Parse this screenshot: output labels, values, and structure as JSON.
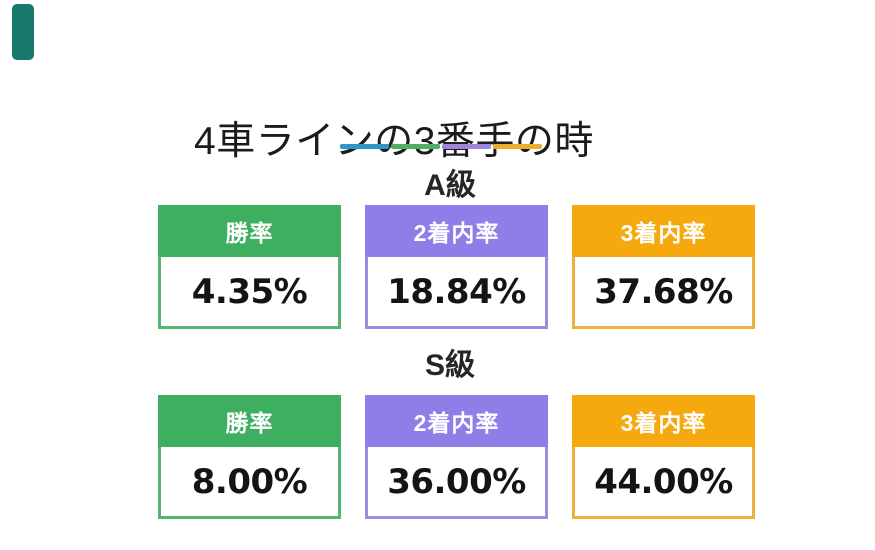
{
  "title": {
    "text": "4車ラインの3番手の時"
  },
  "accent_bar": {
    "color": "#17786E"
  },
  "divider": {
    "segments": [
      {
        "name": "blue",
        "color": "#3094C5"
      },
      {
        "name": "green",
        "color": "#4FAF66"
      },
      {
        "name": "purple",
        "color": "#9D87DC"
      },
      {
        "name": "amber",
        "color": "#ECAF2D"
      }
    ]
  },
  "sections": [
    {
      "id": "a-class",
      "heading": "A級",
      "cards": [
        {
          "label": "勝率",
          "value": "4.35%",
          "header_color": "#3EAE60",
          "border_color": "#55B671"
        },
        {
          "label": "2着内率",
          "value": "18.84%",
          "header_color": "#8D7EE8",
          "border_color": "#9C8CE0"
        },
        {
          "label": "3着内率",
          "value": "37.68%",
          "header_color": "#F6A90E",
          "border_color": "#EDB23C"
        }
      ]
    },
    {
      "id": "s-class",
      "heading": "S級",
      "cards": [
        {
          "label": "勝率",
          "value": "8.00%",
          "header_color": "#3EAE60",
          "border_color": "#55B671"
        },
        {
          "label": "2着内率",
          "value": "36.00%",
          "header_color": "#8D7EE8",
          "border_color": "#9C8CE0"
        },
        {
          "label": "3着内率",
          "value": "44.00%",
          "header_color": "#F6A90E",
          "border_color": "#EDB23C"
        }
      ]
    }
  ],
  "chart_data": {
    "type": "table",
    "title": "4車ラインの3番手の時",
    "unit": "%",
    "categories": [
      "勝率",
      "2着内率",
      "3着内率"
    ],
    "series": [
      {
        "name": "A級",
        "values": [
          4.35,
          18.84,
          37.68
        ]
      },
      {
        "name": "S級",
        "values": [
          8.0,
          36.0,
          44.0
        ]
      }
    ],
    "legend_colors": {
      "勝率": "#3EAE60",
      "2着内率": "#8D7EE8",
      "3着内率": "#F6A90E"
    }
  }
}
